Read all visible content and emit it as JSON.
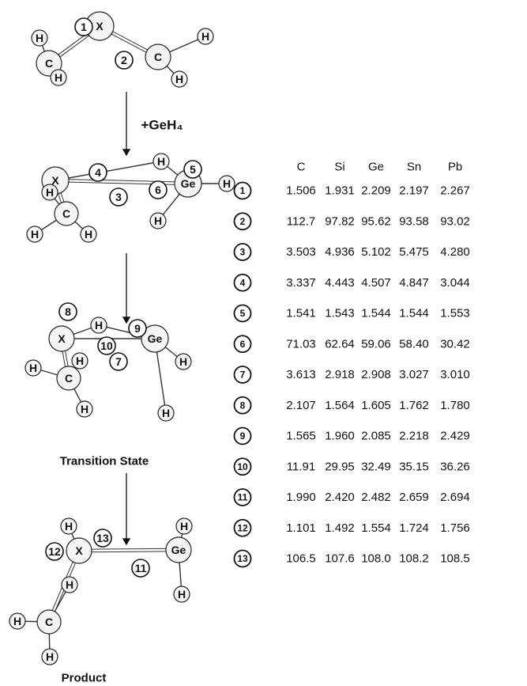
{
  "reactant": {
    "atoms": [
      "X",
      "C",
      "C",
      "H",
      "H",
      "H",
      "H"
    ],
    "numbers": [
      "1",
      "2"
    ]
  },
  "reagent": "+GeH₄",
  "complex": {
    "atoms": [
      "X",
      "H",
      "Ge",
      "H",
      "H",
      "C",
      "H",
      "H",
      "H"
    ],
    "numbers": [
      "4",
      "5",
      "6",
      "3"
    ]
  },
  "transition_state": {
    "caption": "Transition State",
    "atoms": [
      "X",
      "H",
      "Ge",
      "H",
      "H",
      "C",
      "H",
      "H",
      "H"
    ],
    "numbers": [
      "8",
      "9",
      "10",
      "7"
    ]
  },
  "product": {
    "caption": "Product",
    "atoms": [
      "X",
      "Ge",
      "H",
      "H",
      "C",
      "H",
      "H",
      "H",
      "H"
    ],
    "numbers": [
      "12",
      "13",
      "11"
    ]
  },
  "table": {
    "header": [
      "C",
      "Si",
      "Ge",
      "Sn",
      "Pb"
    ],
    "rows": [
      [
        "1",
        "1.506",
        "1.931",
        "2.209",
        "2.197",
        "2.267"
      ],
      [
        "2",
        "112.7",
        "97.82",
        "95.62",
        "93.58",
        "93.02"
      ],
      [
        "3",
        "3.503",
        "4.936",
        "5.102",
        "5.475",
        "4.280"
      ],
      [
        "4",
        "3.337",
        "4.443",
        "4.507",
        "4.847",
        "3.044"
      ],
      [
        "5",
        "1.541",
        "1.543",
        "1.544",
        "1.544",
        "1.553"
      ],
      [
        "6",
        "71.03",
        "62.64",
        "59.06",
        "58.40",
        "30.42"
      ],
      [
        "7",
        "3.613",
        "2.918",
        "2.908",
        "3.027",
        "3.010"
      ],
      [
        "8",
        "2.107",
        "1.564",
        "1.605",
        "1.762",
        "1.780"
      ],
      [
        "9",
        "1.565",
        "1.960",
        "2.085",
        "2.218",
        "2.429"
      ],
      [
        "10",
        "11.91",
        "29.95",
        "32.49",
        "35.15",
        "36.26"
      ],
      [
        "11",
        "1.990",
        "2.420",
        "2.482",
        "2.659",
        "2.694"
      ],
      [
        "12",
        "1.101",
        "1.492",
        "1.554",
        "1.724",
        "1.756"
      ],
      [
        "13",
        "106.5",
        "107.6",
        "108.0",
        "108.2",
        "108.5"
      ]
    ]
  }
}
